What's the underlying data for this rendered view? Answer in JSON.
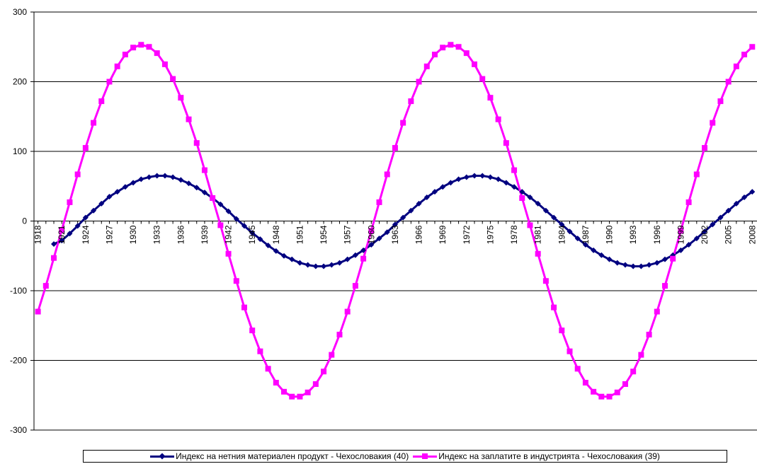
{
  "chart_data": {
    "type": "line",
    "title": "",
    "xlabel": "",
    "ylabel": "",
    "ylim": [
      -300,
      300
    ],
    "yticks": [
      "300",
      "200",
      "100",
      "0",
      "-100",
      "-200",
      "-300"
    ],
    "xticks": [
      "1918",
      "1921",
      "1924",
      "1927",
      "1930",
      "1933",
      "1936",
      "1939",
      "1942",
      "1945",
      "1948",
      "1951",
      "1954",
      "1957",
      "1960",
      "1963",
      "1966",
      "1969",
      "1972",
      "1975",
      "1978",
      "1981",
      "1984",
      "1987",
      "1990",
      "1993",
      "1996",
      "1999",
      "2002",
      "2005",
      "2008"
    ],
    "x_start": 1918,
    "x_end": 2008,
    "grid": "horizontal",
    "legend_position": "bottom",
    "series": [
      {
        "name": "Индекс на нетния материален продукт - Чехословакия (40)",
        "color": "#000080",
        "marker": "diamond",
        "x": [
          1920,
          1921,
          1922,
          1923,
          1924,
          1925,
          1926,
          1927,
          1928,
          1929,
          1930,
          1931,
          1932,
          1933,
          1934,
          1935,
          1936,
          1937,
          1938,
          1939,
          1940,
          1941,
          1942,
          1943,
          1944,
          1945,
          1946,
          1947,
          1948,
          1949,
          1950,
          1951,
          1952,
          1953,
          1954,
          1955,
          1956,
          1957,
          1958,
          1959,
          1960,
          1961,
          1962,
          1963,
          1964,
          1965,
          1966,
          1967,
          1968,
          1969,
          1970,
          1971,
          1972,
          1973,
          1974,
          1975,
          1976,
          1977,
          1978,
          1979,
          1980,
          1981,
          1982,
          1983,
          1984,
          1985,
          1986,
          1987,
          1988,
          1989,
          1990,
          1991,
          1992,
          1993,
          1994,
          1995,
          1996,
          1997,
          1998,
          1999,
          2000,
          2001,
          2002,
          2003,
          2004,
          2005,
          2006,
          2007,
          2008
        ],
        "values": [
          -33,
          -28,
          -18,
          -7,
          5,
          15,
          25,
          35,
          42,
          49,
          55,
          60,
          63,
          65,
          65,
          63,
          59,
          54,
          48,
          41,
          33,
          24,
          14,
          3,
          -7,
          -17,
          -26,
          -35,
          -43,
          -50,
          -55,
          -60,
          -63,
          -65,
          -65,
          -63,
          -60,
          -55,
          -49,
          -42,
          -34,
          -25,
          -16,
          -5,
          5,
          15,
          25,
          34,
          42,
          49,
          55,
          60,
          63,
          65,
          65,
          63,
          60,
          55,
          49,
          42,
          34,
          25,
          15,
          5,
          -5,
          -15,
          -25,
          -34,
          -42,
          -49,
          -55,
          -60,
          -63,
          -65,
          -65,
          -63,
          -60,
          -55,
          -49,
          -42,
          -34,
          -25,
          -15,
          -5,
          5,
          15,
          25,
          34,
          42
        ]
      },
      {
        "name": "Индекс на заплатите в индустрията - Чехословакия (39)",
        "color": "#FF00FF",
        "marker": "square",
        "x": [
          1918,
          1919,
          1920,
          1921,
          1922,
          1923,
          1924,
          1925,
          1926,
          1927,
          1928,
          1929,
          1930,
          1931,
          1932,
          1933,
          1934,
          1935,
          1936,
          1937,
          1938,
          1939,
          1940,
          1941,
          1942,
          1943,
          1944,
          1945,
          1946,
          1947,
          1948,
          1949,
          1950,
          1951,
          1952,
          1953,
          1954,
          1955,
          1956,
          1957,
          1958,
          1959,
          1960,
          1961,
          1962,
          1963,
          1964,
          1965,
          1966,
          1967,
          1968,
          1969,
          1970,
          1971,
          1972,
          1973,
          1974,
          1975,
          1976,
          1977,
          1978,
          1979,
          1980,
          1981,
          1982,
          1983,
          1984,
          1985,
          1986,
          1987,
          1988,
          1989,
          1990,
          1991,
          1992,
          1993,
          1994,
          1995,
          1996,
          1997,
          1998,
          1999,
          2000,
          2001,
          2002,
          2003,
          2004,
          2005,
          2006,
          2007,
          2008
        ],
        "values": [
          -130,
          -93,
          -53,
          -13,
          27,
          67,
          105,
          141,
          172,
          200,
          222,
          239,
          249,
          253,
          250,
          241,
          225,
          204,
          177,
          146,
          112,
          73,
          33,
          -6,
          -47,
          -86,
          -124,
          -157,
          -187,
          -212,
          -232,
          -245,
          -252,
          -252,
          -246,
          -234,
          -216,
          -192,
          -163,
          -130,
          -93,
          -54,
          -14,
          27,
          67,
          105,
          141,
          172,
          200,
          222,
          239,
          249,
          253,
          250,
          241,
          225,
          204,
          177,
          146,
          112,
          73,
          33,
          -6,
          -47,
          -86,
          -124,
          -157,
          -187,
          -212,
          -232,
          -245,
          -252,
          -252,
          -246,
          -234,
          -216,
          -192,
          -163,
          -130,
          -93,
          -54,
          -14,
          27,
          67,
          105,
          141,
          172,
          200,
          222,
          239,
          250
        ]
      }
    ]
  }
}
